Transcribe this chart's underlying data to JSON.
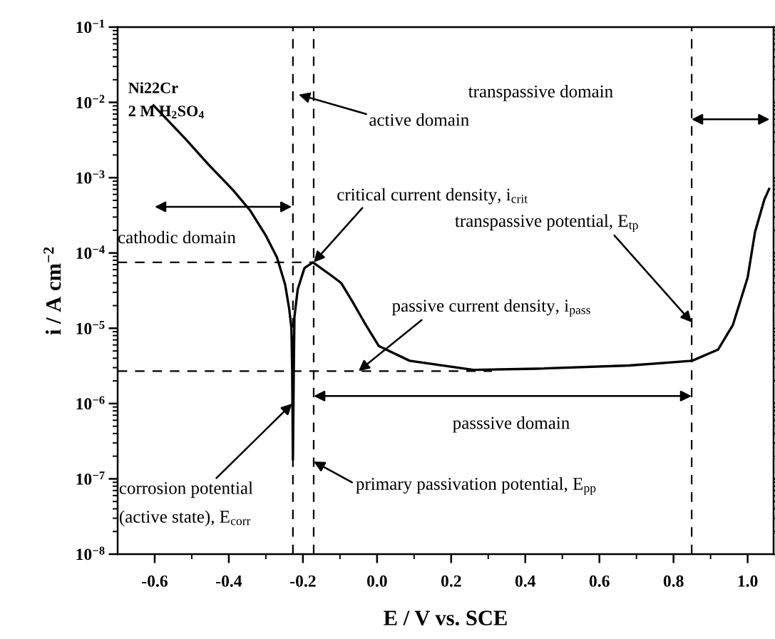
{
  "chart_data": {
    "type": "line",
    "xlabel": "E / V vs. SCE",
    "ylabel": "i / A cm$^{−2}$",
    "log": "y",
    "grid": false,
    "marker": "none",
    "xlim": [
      -0.7,
      1.07
    ],
    "ylim": [
      1e-08,
      0.1
    ],
    "xticks": [
      {
        "value": -0.6,
        "label": "-0.6"
      },
      {
        "value": -0.5,
        "label": null
      },
      {
        "value": -0.4,
        "label": "-0.4"
      },
      {
        "value": -0.3,
        "label": null
      },
      {
        "value": -0.2,
        "label": "-0.2"
      },
      {
        "value": -0.1,
        "label": null
      },
      {
        "value": 0.0,
        "label": "0.0"
      },
      {
        "value": 0.1,
        "label": null
      },
      {
        "value": 0.2,
        "label": "0.2"
      },
      {
        "value": 0.3,
        "label": null
      },
      {
        "value": 0.4,
        "label": "0.4"
      },
      {
        "value": 0.5,
        "label": null
      },
      {
        "value": 0.6,
        "label": "0.6"
      },
      {
        "value": 0.7,
        "label": null
      },
      {
        "value": 0.8,
        "label": "0.8"
      },
      {
        "value": 0.9,
        "label": null
      },
      {
        "value": 1.0,
        "label": "1.0"
      }
    ],
    "yticks": [
      {
        "value": 1e-08,
        "label": "10$^{−8}$"
      },
      {
        "value": 1e-07,
        "label": "10$^{−7}$"
      },
      {
        "value": 1e-06,
        "label": "10$^{−6}$"
      },
      {
        "value": 1e-05,
        "label": "10$^{−5}$"
      },
      {
        "value": 0.0001,
        "label": "10$^{−4}$"
      },
      {
        "value": 0.001,
        "label": "10$^{−3}$"
      },
      {
        "value": 0.01,
        "label": "10$^{−2}$"
      },
      {
        "value": 0.1,
        "label": "10$^{−1}$"
      }
    ],
    "series": [
      {
        "color": "#000000",
        "line_style": "solid",
        "x": [
          -0.603,
          -0.515,
          -0.455,
          -0.388,
          -0.343,
          -0.3,
          -0.27,
          -0.248,
          -0.237,
          -0.231,
          -0.229,
          -0.227,
          -0.225,
          -0.223,
          -0.214,
          -0.196,
          -0.173,
          -0.123,
          -0.097,
          -0.065,
          -0.03,
          0.005,
          0.088,
          0.26,
          0.43,
          0.68,
          0.85,
          0.92,
          0.96,
          1.0,
          1.02,
          1.045,
          1.058
        ],
        "values": [
          0.0091,
          0.0032,
          0.0015,
          0.00068,
          0.00037,
          0.00017,
          8.7e-05,
          3.8e-05,
          1.8e-05,
          1e-05,
          2.7e-06,
          1.8e-07,
          2e-06,
          1.4e-05,
          3.3e-05,
          6.3e-05,
          7.5e-05,
          5e-05,
          4e-05,
          2.2e-05,
          1.1e-05,
          5.8e-06,
          3.7e-06,
          2.8e-06,
          2.9e-06,
          3.2e-06,
          3.7e-06,
          5.2e-06,
          1.1e-05,
          4.7e-05,
          0.00019,
          0.00051,
          0.00071
        ]
      },
      {
        "color": "#000000",
        "line_style": "dashed",
        "x": [
          -0.7,
          -0.171
        ],
        "values": [
          7.5e-05,
          7.5e-05
        ]
      },
      {
        "color": "#000000",
        "line_style": "dashed",
        "x": [
          -0.7,
          0.31
        ],
        "values": [
          2.7e-06,
          2.7e-06
        ]
      }
    ],
    "ref_lines": [
      {
        "axis": "x",
        "value": -0.227,
        "color": "#000000",
        "line_style": "dashed"
      },
      {
        "axis": "x",
        "value": -0.171,
        "color": "#000000",
        "line_style": "dashed"
      },
      {
        "axis": "x",
        "value": 0.849,
        "color": "#000000",
        "line_style": "dashed"
      }
    ],
    "annotations": [
      "Ni22Cr",
      "2 M H$_{2}$SO$_{4}$",
      "active domain",
      "cathodic domain",
      "passsive domain",
      "transpassive domain",
      {
        "text": "critical current density, i$_{crit}$",
        "x": -0.171,
        "y": 7.5e-05
      },
      {
        "text": "transpassive potential, E$_{tp}$",
        "x": 0.849,
        "y": 1.2e-05
      },
      {
        "text": "passive current density, i$_{pass}$",
        "x": -0.05,
        "y": 2.7e-06
      },
      {
        "text": "corrosion potential\n(active state), E$_{corr}$",
        "x": -0.229,
        "y": 1e-06
      },
      {
        "text": "primary passivation potential, E$_{pp}$",
        "x": -0.171,
        "y": 1.7e-07
      }
    ]
  }
}
